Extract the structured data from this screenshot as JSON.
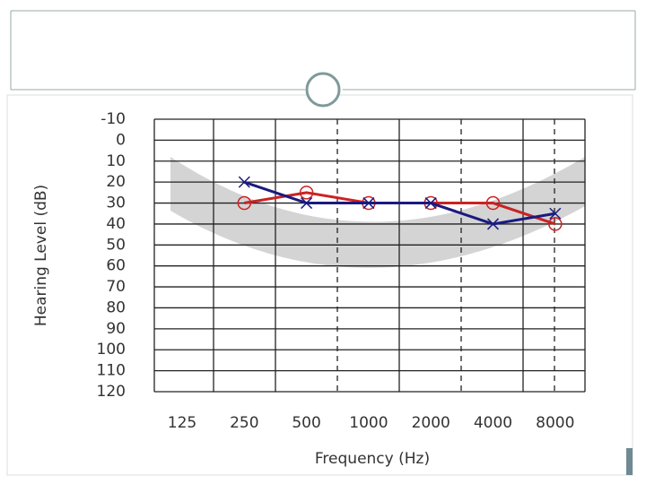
{
  "chart_data": {
    "type": "line",
    "y_label": "Hearing Level (dB)",
    "x_label": "Frequency (Hz)",
    "categories": [
      "125",
      "250",
      "500",
      "1000",
      "2000",
      "4000",
      "8000"
    ],
    "series": [
      {
        "color": "#cc2222",
        "marker": "o",
        "values": [
          null,
          30,
          25,
          30,
          30,
          30,
          40
        ]
      },
      {
        "color": "#1a1a80",
        "marker": "x",
        "values": [
          null,
          20,
          30,
          30,
          30,
          40,
          35
        ]
      }
    ],
    "ylim": [
      -10,
      120
    ],
    "y_reversed": true,
    "yticks": [
      -10,
      0,
      10,
      20,
      30,
      40,
      50,
      60,
      70,
      80,
      90,
      100,
      110,
      120
    ],
    "grid": true
  }
}
